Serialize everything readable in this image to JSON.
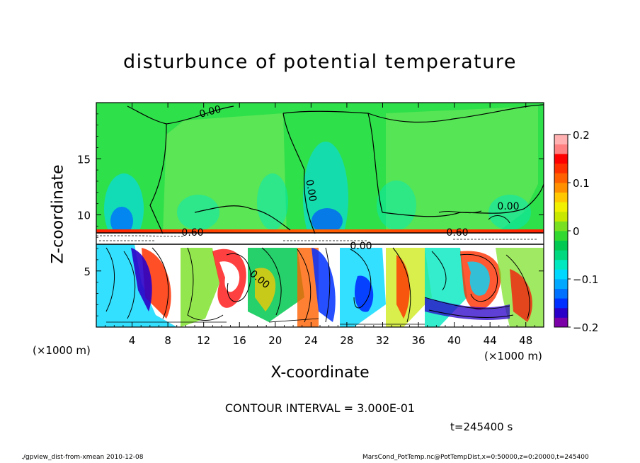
{
  "chart_data": {
    "type": "heatmap",
    "title": "disturbunce of potential temperature",
    "xlabel": "X-coordinate",
    "ylabel": "Z-coordinate",
    "x_unit_label": "(×1000 m)",
    "x_ticks": [
      4,
      8,
      12,
      16,
      20,
      24,
      28,
      32,
      36,
      40,
      44,
      48
    ],
    "y_ticks": [
      5,
      10,
      15
    ],
    "xlim": [
      0,
      50
    ],
    "ylim": [
      0,
      20
    ],
    "colorbar": {
      "ticks": [
        "0.2",
        "0.1",
        "0",
        "−0.1",
        "−0.2"
      ],
      "range": [
        -0.2,
        0.2
      ],
      "colors": [
        "#7b00a8",
        "#2a00c8",
        "#0030ff",
        "#0070ff",
        "#00a8ff",
        "#00d8ff",
        "#00e8c0",
        "#00d880",
        "#00c850",
        "#30d830",
        "#78e020",
        "#c8e800",
        "#f0f000",
        "#ffc800",
        "#ff9000",
        "#ff6000",
        "#ff3000",
        "#ff0000",
        "#ff8080",
        "#ffb0b0"
      ]
    },
    "contour_labels": [
      "0.00",
      "0.00",
      "0.00",
      "0.60",
      "0.60",
      "0.00",
      "0.00"
    ],
    "contour_interval_text": "CONTOUR INTERVAL = 3.000E-01",
    "time_text": "t=245400 s"
  },
  "footer": {
    "left": "./gpview_dist-from-xmean  2010-12-08",
    "right": "MarsCond_PotTemp.nc@PotTempDist,x=0:50000,z=0:20000,t=245400"
  },
  "colors": {
    "background_green": "#2ee04a",
    "upper_light_green": "#6ae85a"
  }
}
